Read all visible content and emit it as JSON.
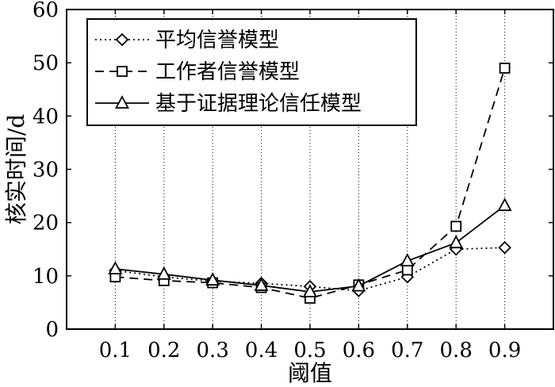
{
  "chart_data": {
    "type": "line",
    "xlabel": "阈值",
    "ylabel": "核实时间/d",
    "x": [
      0.1,
      0.2,
      0.3,
      0.4,
      0.5,
      0.6,
      0.7,
      0.8,
      0.9
    ],
    "xticks": [
      "0.1",
      "0.2",
      "0.3",
      "0.4",
      "0.5",
      "0.6",
      "0.7",
      "0.8",
      "0.9"
    ],
    "xlim": [
      0.0,
      1.0
    ],
    "ylim": [
      0,
      60
    ],
    "yticks": [
      "0",
      "10",
      "20",
      "30",
      "40",
      "50",
      "60"
    ],
    "grid": "vertical dotted at x ticks",
    "legend_position": "top-left",
    "series": [
      {
        "name": "平均信誉模型",
        "marker": "diamond",
        "line": "dotted",
        "values": [
          11.0,
          9.8,
          9.0,
          8.6,
          8.0,
          7.2,
          9.8,
          15.0,
          15.3
        ]
      },
      {
        "name": "工作者信誉模型",
        "marker": "square",
        "line": "dashed",
        "values": [
          9.8,
          9.1,
          8.7,
          7.8,
          5.8,
          8.3,
          11.1,
          19.3,
          49.0
        ]
      },
      {
        "name": "基于证据理论信任模型",
        "marker": "triangle",
        "line": "solid",
        "values": [
          11.3,
          10.3,
          9.2,
          8.2,
          7.0,
          8.1,
          12.8,
          16.2,
          23.2
        ]
      }
    ]
  }
}
